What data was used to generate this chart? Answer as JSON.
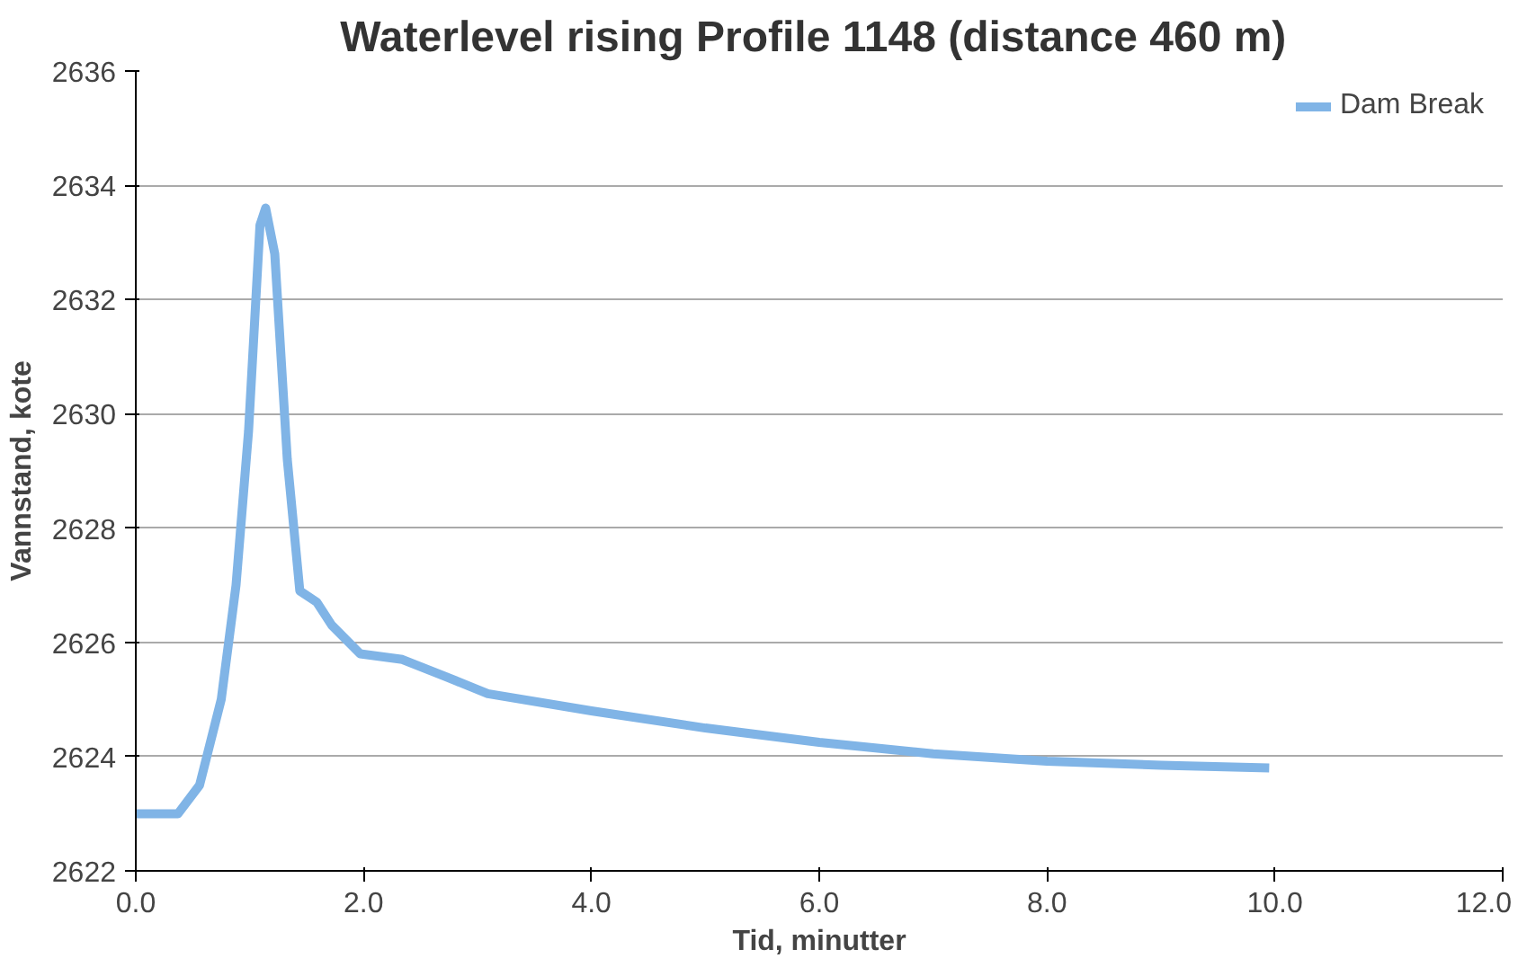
{
  "chart_data": {
    "type": "line",
    "title": "Waterlevel rising  Profile 1148 (distance 460 m)",
    "xlabel": "Tid, minutter",
    "ylabel": "Vannstand, kote",
    "xlim": [
      0,
      12
    ],
    "xticks": [
      {
        "value": 0,
        "label": "0.0"
      },
      {
        "value": 2,
        "label": "2.0"
      },
      {
        "value": 4,
        "label": "4.0"
      },
      {
        "value": 6,
        "label": "6.0"
      },
      {
        "value": 8,
        "label": "8.0"
      },
      {
        "value": 10,
        "label": "10.0"
      },
      {
        "value": 12,
        "label": "12.0"
      }
    ],
    "ylim": [
      2622,
      2636
    ],
    "yticks": [
      2622,
      2624,
      2626,
      2628,
      2630,
      2632,
      2634,
      2636
    ],
    "grid": "y",
    "legend": "top right",
    "marker": "none",
    "line_style": "solid",
    "series": [
      {
        "name": "Dam Break",
        "color": "#80b4e6",
        "x": [
          0,
          0.37,
          0.56,
          0.75,
          0.88,
          0.99,
          1.09,
          1.14,
          1.22,
          1.33,
          1.44,
          1.59,
          1.72,
          1.97,
          2.34,
          2.72,
          3.09,
          4.0,
          5.0,
          6.0,
          7.0,
          8.0,
          9.0,
          9.95
        ],
        "values": [
          2623.0,
          2623.0,
          2623.5,
          2625.0,
          2627.0,
          2629.7,
          2633.3,
          2633.6,
          2632.8,
          2629.2,
          2626.9,
          2626.7,
          2626.3,
          2625.8,
          2625.7,
          2625.4,
          2625.1,
          2624.8,
          2624.5,
          2624.25,
          2624.05,
          2623.92,
          2623.85,
          2623.8
        ]
      }
    ]
  }
}
